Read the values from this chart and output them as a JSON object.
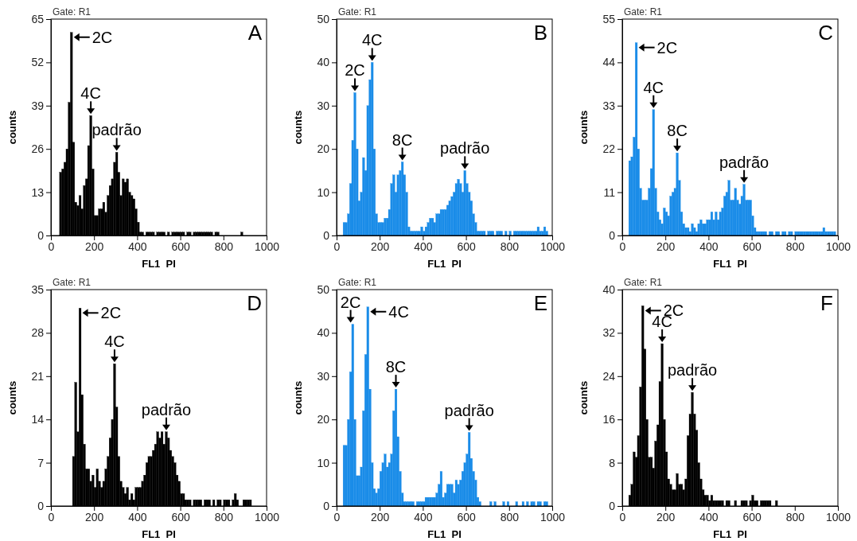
{
  "chart_data": [
    {
      "type": "histogram",
      "title": "A",
      "xlabel": "FL1  PI",
      "ylabel": "counts",
      "color": "#000000",
      "xlim": [
        0,
        1000
      ],
      "xticks": [
        0,
        200,
        400,
        600,
        800,
        1000
      ],
      "ylim": [
        0,
        65
      ],
      "yticks": [
        0,
        13,
        26,
        39,
        52,
        65
      ],
      "bins": [
        0,
        10,
        20,
        30,
        40,
        50,
        60,
        70,
        80,
        90,
        100,
        110,
        120,
        130,
        140,
        150,
        160,
        170,
        180,
        190,
        200,
        210,
        220,
        230,
        240,
        250,
        260,
        270,
        280,
        290,
        300,
        310,
        320,
        330,
        340,
        350,
        360,
        370,
        380,
        390,
        400,
        410,
        420,
        430,
        440,
        450,
        460,
        470,
        480,
        490,
        500,
        510,
        520,
        530,
        540,
        550,
        560,
        570,
        580,
        590,
        600,
        610,
        620,
        630,
        640,
        650,
        660,
        670,
        680,
        690,
        700,
        710,
        720,
        730,
        740,
        750,
        760,
        770,
        780,
        790,
        800,
        810,
        820,
        830,
        840,
        850,
        860,
        870,
        880,
        890,
        900,
        910,
        920,
        930,
        940,
        950,
        960,
        970,
        980,
        990,
        1000
      ],
      "values": [
        0,
        0,
        0,
        0,
        19,
        20,
        22,
        26,
        40,
        61,
        28,
        10,
        9,
        12,
        8,
        15,
        17,
        27,
        36,
        20,
        6,
        6,
        8,
        8,
        10,
        7,
        12,
        15,
        17,
        22,
        25,
        19,
        12,
        17,
        16,
        17,
        13,
        12,
        11,
        8,
        4,
        1,
        1,
        0,
        1,
        1,
        1,
        1,
        0,
        1,
        1,
        1,
        1,
        0,
        1,
        0,
        1,
        1,
        1,
        1,
        1,
        1,
        0,
        1,
        1,
        0,
        1,
        1,
        1,
        1,
        1,
        1,
        1,
        1,
        1,
        0,
        1,
        1,
        0,
        0,
        0,
        0,
        0,
        0,
        0,
        0,
        0,
        0,
        1,
        0,
        0,
        0,
        0,
        0,
        0,
        0,
        0,
        0,
        0,
        0
      ],
      "annotations": [
        "Gate: R1",
        {
          "text": "2C",
          "x": 95,
          "y": 61
        },
        {
          "text": "4C",
          "x": 185,
          "y": 36
        },
        {
          "text": "padrão",
          "x": 305,
          "y": 25
        }
      ]
    },
    {
      "type": "histogram",
      "title": "B",
      "xlabel": "FL1  PI",
      "ylabel": "counts",
      "color": "#1a8ce8",
      "xlim": [
        0,
        1000
      ],
      "xticks": [
        0,
        200,
        400,
        600,
        800,
        1000
      ],
      "ylim": [
        0,
        50
      ],
      "yticks": [
        0,
        10,
        20,
        30,
        40,
        50
      ],
      "bins": [
        0,
        10,
        20,
        30,
        40,
        50,
        60,
        70,
        80,
        90,
        100,
        110,
        120,
        130,
        140,
        150,
        160,
        170,
        180,
        190,
        200,
        210,
        220,
        230,
        240,
        250,
        260,
        270,
        280,
        290,
        300,
        310,
        320,
        330,
        340,
        350,
        360,
        370,
        380,
        390,
        400,
        410,
        420,
        430,
        440,
        450,
        460,
        470,
        480,
        490,
        500,
        510,
        520,
        530,
        540,
        550,
        560,
        570,
        580,
        590,
        600,
        610,
        620,
        630,
        640,
        650,
        660,
        670,
        680,
        690,
        700,
        710,
        720,
        730,
        740,
        750,
        760,
        770,
        780,
        790,
        800,
        810,
        820,
        830,
        840,
        850,
        860,
        870,
        880,
        890,
        900,
        910,
        920,
        930,
        940,
        950,
        960,
        970,
        980,
        990,
        1000
      ],
      "values": [
        0,
        0,
        0,
        3,
        3,
        5,
        12,
        22,
        33,
        20,
        8,
        10,
        18,
        15,
        30,
        36,
        40,
        20,
        5,
        3,
        3,
        3,
        4,
        4,
        6,
        12,
        14,
        10,
        14,
        15,
        17,
        14,
        10,
        2,
        1,
        1,
        1,
        1,
        1,
        2,
        1,
        2,
        3,
        4,
        4,
        3,
        5,
        5,
        6,
        6,
        6,
        7,
        8,
        9,
        10,
        12,
        13,
        12,
        10,
        15,
        12,
        10,
        8,
        5,
        3,
        1,
        1,
        1,
        1,
        0,
        1,
        1,
        1,
        0,
        1,
        1,
        1,
        0,
        1,
        0,
        1,
        0,
        1,
        1,
        1,
        1,
        1,
        1,
        1,
        1,
        1,
        1,
        1,
        2,
        1,
        1,
        2,
        1,
        0,
        0
      ],
      "annotations": [
        "Gate: R1",
        {
          "text": "2C",
          "x": 85,
          "y": 33
        },
        {
          "text": "4C",
          "x": 165,
          "y": 40
        },
        {
          "text": "8C",
          "x": 305,
          "y": 17
        },
        {
          "text": "padrão",
          "x": 595,
          "y": 15
        }
      ]
    },
    {
      "type": "histogram",
      "title": "C",
      "xlabel": "FL1  PI",
      "ylabel": "counts",
      "color": "#1a8ce8",
      "xlim": [
        0,
        1000
      ],
      "xticks": [
        0,
        200,
        400,
        600,
        800,
        1000
      ],
      "ylim": [
        0,
        55
      ],
      "yticks": [
        0,
        11,
        22,
        33,
        44,
        55
      ],
      "bins": [
        0,
        10,
        20,
        30,
        40,
        50,
        60,
        70,
        80,
        90,
        100,
        110,
        120,
        130,
        140,
        150,
        160,
        170,
        180,
        190,
        200,
        210,
        220,
        230,
        240,
        250,
        260,
        270,
        280,
        290,
        300,
        310,
        320,
        330,
        340,
        350,
        360,
        370,
        380,
        390,
        400,
        410,
        420,
        430,
        440,
        450,
        460,
        470,
        480,
        490,
        500,
        510,
        520,
        530,
        540,
        550,
        560,
        570,
        580,
        590,
        600,
        610,
        620,
        630,
        640,
        650,
        660,
        670,
        680,
        690,
        700,
        710,
        720,
        730,
        740,
        750,
        760,
        770,
        780,
        790,
        800,
        810,
        820,
        830,
        840,
        850,
        860,
        870,
        880,
        890,
        900,
        910,
        920,
        930,
        940,
        950,
        960,
        970,
        980,
        990,
        1000
      ],
      "values": [
        0,
        0,
        0,
        19,
        20,
        25,
        49,
        22,
        12,
        9,
        9,
        9,
        12,
        17,
        32,
        12,
        6,
        4,
        3,
        7,
        6,
        5,
        10,
        11,
        12,
        21,
        14,
        6,
        3,
        2,
        2,
        1,
        3,
        2,
        1,
        3,
        4,
        3,
        3,
        4,
        4,
        6,
        4,
        6,
        4,
        6,
        7,
        10,
        11,
        14,
        9,
        9,
        12,
        9,
        8,
        10,
        13,
        9,
        9,
        9,
        5,
        2,
        1,
        1,
        1,
        1,
        1,
        0,
        1,
        1,
        0,
        1,
        1,
        0,
        1,
        1,
        0,
        1,
        1,
        0,
        1,
        1,
        1,
        1,
        1,
        1,
        1,
        1,
        1,
        1,
        1,
        1,
        1,
        2,
        1,
        1,
        1,
        1,
        1,
        0
      ],
      "annotations": [
        "Gate: R1",
        {
          "text": "2C",
          "x": 65,
          "y": 49
        },
        {
          "text": "4C",
          "x": 145,
          "y": 32
        },
        {
          "text": "8C",
          "x": 255,
          "y": 21
        },
        {
          "text": "padrão",
          "x": 565,
          "y": 13
        }
      ]
    },
    {
      "type": "histogram",
      "title": "D",
      "xlabel": "FL1  PI",
      "ylabel": "counts",
      "color": "#000000",
      "xlim": [
        0,
        1000
      ],
      "xticks": [
        0,
        200,
        400,
        600,
        800,
        1000
      ],
      "ylim": [
        0,
        35
      ],
      "yticks": [
        0,
        7,
        14,
        21,
        28,
        35
      ],
      "bins": [
        0,
        10,
        20,
        30,
        40,
        50,
        60,
        70,
        80,
        90,
        100,
        110,
        120,
        130,
        140,
        150,
        160,
        170,
        180,
        190,
        200,
        210,
        220,
        230,
        240,
        250,
        260,
        270,
        280,
        290,
        300,
        310,
        320,
        330,
        340,
        350,
        360,
        370,
        380,
        390,
        400,
        410,
        420,
        430,
        440,
        450,
        460,
        470,
        480,
        490,
        500,
        510,
        520,
        530,
        540,
        550,
        560,
        570,
        580,
        590,
        600,
        610,
        620,
        630,
        640,
        650,
        660,
        670,
        680,
        690,
        700,
        710,
        720,
        730,
        740,
        750,
        760,
        770,
        780,
        790,
        800,
        810,
        820,
        830,
        840,
        850,
        860,
        870,
        880,
        890,
        900,
        910,
        920,
        930,
        940,
        950,
        960,
        970,
        980,
        990,
        1000
      ],
      "values": [
        0,
        0,
        0,
        0,
        0,
        0,
        0,
        0,
        0,
        0,
        8,
        20,
        12,
        32,
        18,
        10,
        6,
        6,
        4,
        5,
        3,
        6,
        4,
        3,
        4,
        6,
        8,
        11,
        14,
        23,
        16,
        8,
        4,
        3,
        2,
        3,
        1,
        2,
        1,
        3,
        3,
        3,
        4,
        5,
        7,
        8,
        8,
        9,
        10,
        12,
        11,
        12,
        10,
        12,
        11,
        9,
        8,
        7,
        5,
        4,
        2,
        2,
        1,
        1,
        1,
        0,
        1,
        1,
        1,
        1,
        0,
        1,
        1,
        1,
        0,
        1,
        0,
        1,
        1,
        0,
        1,
        1,
        1,
        0,
        1,
        2,
        1,
        0,
        0,
        1,
        1,
        1,
        1,
        0,
        0,
        0,
        0,
        0,
        0,
        0
      ],
      "annotations": [
        "Gate: R1",
        {
          "text": "2C",
          "x": 135,
          "y": 32
        },
        {
          "text": "4C",
          "x": 295,
          "y": 23
        },
        {
          "text": "padrão",
          "x": 535,
          "y": 12
        }
      ]
    },
    {
      "type": "histogram",
      "title": "E",
      "xlabel": "FL1  PI",
      "ylabel": "counts",
      "color": "#1a8ce8",
      "xlim": [
        0,
        1000
      ],
      "xticks": [
        0,
        200,
        400,
        600,
        800,
        1000
      ],
      "ylim": [
        0,
        50
      ],
      "yticks": [
        0,
        10,
        20,
        30,
        40,
        50
      ],
      "bins": [
        0,
        10,
        20,
        30,
        40,
        50,
        60,
        70,
        80,
        90,
        100,
        110,
        120,
        130,
        140,
        150,
        160,
        170,
        180,
        190,
        200,
        210,
        220,
        230,
        240,
        250,
        260,
        270,
        280,
        290,
        300,
        310,
        320,
        330,
        340,
        350,
        360,
        370,
        380,
        390,
        400,
        410,
        420,
        430,
        440,
        450,
        460,
        470,
        480,
        490,
        500,
        510,
        520,
        530,
        540,
        550,
        560,
        570,
        580,
        590,
        600,
        610,
        620,
        630,
        640,
        650,
        660,
        670,
        680,
        690,
        700,
        710,
        720,
        730,
        740,
        750,
        760,
        770,
        780,
        790,
        800,
        810,
        820,
        830,
        840,
        850,
        860,
        870,
        880,
        890,
        900,
        910,
        920,
        930,
        940,
        950,
        960,
        970,
        980,
        990,
        1000
      ],
      "values": [
        0,
        0,
        0,
        14,
        14,
        20,
        31,
        42,
        20,
        7,
        7,
        9,
        22,
        35,
        46,
        27,
        10,
        4,
        3,
        4,
        8,
        10,
        12,
        9,
        10,
        12,
        22,
        27,
        16,
        8,
        3,
        1,
        1,
        1,
        1,
        1,
        0,
        1,
        1,
        1,
        1,
        2,
        2,
        2,
        2,
        2,
        3,
        5,
        8,
        2,
        3,
        5,
        5,
        5,
        3,
        6,
        5,
        6,
        8,
        10,
        12,
        17,
        11,
        8,
        6,
        2,
        1,
        0,
        0,
        0,
        0,
        1,
        0,
        1,
        0,
        0,
        0,
        1,
        0,
        1,
        0,
        0,
        0,
        1,
        0,
        0,
        1,
        0,
        1,
        0,
        1,
        1,
        0,
        1,
        1,
        0,
        1,
        1,
        0,
        0
      ],
      "annotations": [
        "Gate: R1",
        {
          "text": "2C",
          "x": 65,
          "y": 42
        },
        {
          "text": "4C",
          "x": 145,
          "y": 46
        },
        {
          "text": "8C",
          "x": 275,
          "y": 27
        },
        {
          "text": "padrão",
          "x": 615,
          "y": 17
        }
      ]
    },
    {
      "type": "histogram",
      "title": "F",
      "xlabel": "FL1  PI",
      "ylabel": "counts",
      "color": "#000000",
      "xlim": [
        0,
        1000
      ],
      "xticks": [
        0,
        200,
        400,
        600,
        800,
        1000
      ],
      "ylim": [
        0,
        40
      ],
      "yticks": [
        0,
        8,
        16,
        24,
        32,
        40
      ],
      "bins": [
        0,
        10,
        20,
        30,
        40,
        50,
        60,
        70,
        80,
        90,
        100,
        110,
        120,
        130,
        140,
        150,
        160,
        170,
        180,
        190,
        200,
        210,
        220,
        230,
        240,
        250,
        260,
        270,
        280,
        290,
        300,
        310,
        320,
        330,
        340,
        350,
        360,
        370,
        380,
        390,
        400,
        410,
        420,
        430,
        440,
        450,
        460,
        470,
        480,
        490,
        500,
        510,
        520,
        530,
        540,
        550,
        560,
        570,
        580,
        590,
        600,
        610,
        620,
        630,
        640,
        650,
        660,
        670,
        680,
        690,
        700,
        710,
        720,
        730,
        740,
        750,
        760,
        770,
        780,
        790,
        800,
        810,
        820,
        830,
        840,
        850,
        860,
        870,
        880,
        890,
        900,
        910,
        920,
        930,
        940,
        950,
        960,
        970,
        980,
        990,
        1000
      ],
      "values": [
        0,
        0,
        0,
        2,
        4,
        10,
        9,
        13,
        22,
        37,
        29,
        16,
        9,
        9,
        7,
        12,
        15,
        23,
        30,
        16,
        10,
        5,
        4,
        3,
        3,
        6,
        4,
        4,
        3,
        5,
        13,
        17,
        21,
        17,
        14,
        8,
        5,
        3,
        2,
        2,
        1,
        2,
        1,
        1,
        1,
        1,
        1,
        0,
        1,
        1,
        0,
        0,
        1,
        0,
        0,
        1,
        1,
        1,
        0,
        1,
        2,
        1,
        1,
        0,
        1,
        1,
        1,
        1,
        1,
        0,
        0,
        1,
        0,
        0,
        0,
        0,
        0,
        0,
        0,
        0,
        0,
        0,
        0,
        0,
        0,
        0,
        0,
        0,
        0,
        0,
        0,
        0,
        0,
        0,
        0,
        0,
        0,
        0,
        0,
        0
      ],
      "annotations": [
        "Gate: R1",
        {
          "text": "2C",
          "x": 95,
          "y": 37
        },
        {
          "text": "4C",
          "x": 185,
          "y": 30
        },
        {
          "text": "padrão",
          "x": 325,
          "y": 21
        }
      ]
    }
  ]
}
